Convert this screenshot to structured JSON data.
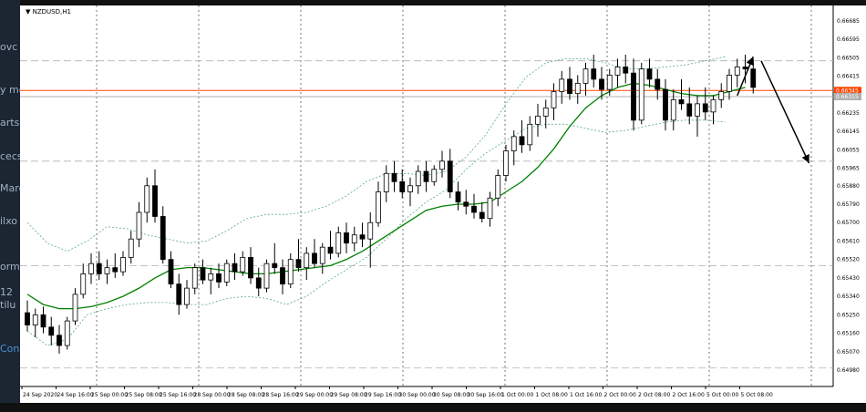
{
  "window": {
    "symbol": "NZDUSD,H1",
    "menu_arrow": "chevron-down-icon"
  },
  "side_panel": {
    "fragments": [
      "ovc",
      "y me",
      "arts",
      "cecs",
      "Marc",
      "ilxo",
      "orme",
      "12",
      "tilu",
      "Cons"
    ]
  },
  "chart_data": {
    "type": "candlestick",
    "symbol": "NZDUSD",
    "timeframe": "H1",
    "y_range": [
      0.649,
      0.6676
    ],
    "y_ticks": [
      "0.66685",
      "0.66595",
      "0.66505",
      "0.66415",
      "0.66325",
      "0.66235",
      "0.66145",
      "0.66055",
      "0.65965",
      "0.65880",
      "0.65790",
      "0.65700",
      "0.65610",
      "0.65520",
      "0.65430",
      "0.65340",
      "0.65250",
      "0.65160",
      "0.65070",
      "0.64980",
      "0.64890"
    ],
    "x_labels": [
      "24 Sep 2020",
      "24 Sep 16:00",
      "25 Sep 00:00",
      "25 Sep 08:00",
      "25 Sep 16:00",
      "28 Sep 00:00",
      "28 Sep 08:00",
      "28 Sep 16:00",
      "29 Sep 00:00",
      "29 Sep 08:00",
      "29 Sep 16:00",
      "30 Sep 00:00",
      "30 Sep 08:00",
      "30 Sep 16:00",
      "1 Oct 00:00",
      "1 Oct 08:00",
      "1 Oct 16:00",
      "2 Oct 00:00",
      "2 Oct 08:00",
      "2 Oct 16:00",
      "5 Oct 00:00",
      "5 Oct 08:00"
    ],
    "horizontal_lines": [
      {
        "price": 0.66345,
        "color": "#ff4500",
        "label": "0.66345",
        "style": "solid"
      },
      {
        "price": 0.66315,
        "color": "#b0b0b0",
        "label": "0.66315",
        "style": "solid"
      },
      {
        "price": 0.6649,
        "color": "#b0b0b0",
        "style": "dashed"
      },
      {
        "price": 0.66,
        "color": "#b0b0b0",
        "style": "dashed"
      },
      {
        "price": 0.6549,
        "color": "#b0b0b0",
        "style": "dashed"
      },
      {
        "price": 0.6499,
        "color": "#b0b0b0",
        "style": "dashed"
      }
    ],
    "candles": [
      [
        0.6526,
        0.6532,
        0.6517,
        0.652
      ],
      [
        0.652,
        0.6528,
        0.6514,
        0.6525
      ],
      [
        0.6525,
        0.6529,
        0.6516,
        0.6519
      ],
      [
        0.6519,
        0.6524,
        0.651,
        0.6515
      ],
      [
        0.6515,
        0.652,
        0.6506,
        0.651
      ],
      [
        0.651,
        0.6524,
        0.6508,
        0.6522
      ],
      [
        0.6522,
        0.6538,
        0.652,
        0.6535
      ],
      [
        0.6535,
        0.655,
        0.6533,
        0.6545
      ],
      [
        0.6545,
        0.6555,
        0.654,
        0.655
      ],
      [
        0.655,
        0.6556,
        0.6542,
        0.6545
      ],
      [
        0.6545,
        0.6552,
        0.654,
        0.6548
      ],
      [
        0.6548,
        0.6555,
        0.6543,
        0.6546
      ],
      [
        0.6546,
        0.6556,
        0.6544,
        0.6553
      ],
      [
        0.6553,
        0.6566,
        0.655,
        0.6562
      ],
      [
        0.6562,
        0.658,
        0.6558,
        0.6575
      ],
      [
        0.6575,
        0.6592,
        0.657,
        0.6588
      ],
      [
        0.6588,
        0.6596,
        0.657,
        0.6573
      ],
      [
        0.6573,
        0.6578,
        0.655,
        0.6552
      ],
      [
        0.6552,
        0.6556,
        0.6538,
        0.654
      ],
      [
        0.654,
        0.6545,
        0.6525,
        0.653
      ],
      [
        0.653,
        0.6542,
        0.6528,
        0.6538
      ],
      [
        0.6538,
        0.655,
        0.6535,
        0.6548
      ],
      [
        0.6548,
        0.6552,
        0.654,
        0.6542
      ],
      [
        0.6542,
        0.6548,
        0.6535,
        0.6545
      ],
      [
        0.6545,
        0.655,
        0.6538,
        0.6541
      ],
      [
        0.6541,
        0.6552,
        0.6539,
        0.655
      ],
      [
        0.655,
        0.6555,
        0.6542,
        0.6546
      ],
      [
        0.6546,
        0.6556,
        0.6544,
        0.6553
      ],
      [
        0.6553,
        0.6558,
        0.654,
        0.6543
      ],
      [
        0.6543,
        0.6548,
        0.6534,
        0.6538
      ],
      [
        0.6538,
        0.6552,
        0.6536,
        0.655
      ],
      [
        0.655,
        0.656,
        0.6545,
        0.6548
      ],
      [
        0.6548,
        0.6552,
        0.6535,
        0.654
      ],
      [
        0.654,
        0.6555,
        0.6538,
        0.6552
      ],
      [
        0.6552,
        0.6562,
        0.6546,
        0.6548
      ],
      [
        0.6548,
        0.6558,
        0.6542,
        0.6555
      ],
      [
        0.6555,
        0.6562,
        0.6548,
        0.655
      ],
      [
        0.655,
        0.656,
        0.6545,
        0.6558
      ],
      [
        0.6558,
        0.6566,
        0.6552,
        0.6555
      ],
      [
        0.6555,
        0.6568,
        0.6553,
        0.6565
      ],
      [
        0.6565,
        0.657,
        0.6555,
        0.656
      ],
      [
        0.656,
        0.6568,
        0.6556,
        0.6564
      ],
      [
        0.6564,
        0.657,
        0.6558,
        0.6562
      ],
      [
        0.6562,
        0.6575,
        0.6548,
        0.657
      ],
      [
        0.657,
        0.659,
        0.6568,
        0.6585
      ],
      [
        0.6585,
        0.6598,
        0.658,
        0.6594
      ],
      [
        0.6594,
        0.66,
        0.6585,
        0.659
      ],
      [
        0.659,
        0.6596,
        0.6582,
        0.6585
      ],
      [
        0.6585,
        0.6592,
        0.6578,
        0.6588
      ],
      [
        0.6588,
        0.6598,
        0.6584,
        0.6595
      ],
      [
        0.6595,
        0.66,
        0.6585,
        0.659
      ],
      [
        0.659,
        0.6598,
        0.6588,
        0.6596
      ],
      [
        0.6596,
        0.6605,
        0.6592,
        0.66
      ],
      [
        0.66,
        0.6606,
        0.6582,
        0.6585
      ],
      [
        0.6585,
        0.659,
        0.6576,
        0.658
      ],
      [
        0.658,
        0.6586,
        0.6574,
        0.6578
      ],
      [
        0.6578,
        0.6584,
        0.6572,
        0.6575
      ],
      [
        0.6575,
        0.658,
        0.657,
        0.6572
      ],
      [
        0.6572,
        0.6585,
        0.6568,
        0.6582
      ],
      [
        0.6582,
        0.6596,
        0.6578,
        0.6593
      ],
      [
        0.6593,
        0.6608,
        0.659,
        0.6605
      ],
      [
        0.6605,
        0.6615,
        0.6598,
        0.6612
      ],
      [
        0.6612,
        0.662,
        0.6604,
        0.6608
      ],
      [
        0.6608,
        0.6622,
        0.6605,
        0.6618
      ],
      [
        0.6618,
        0.6628,
        0.6612,
        0.6622
      ],
      [
        0.6622,
        0.663,
        0.6616,
        0.6626
      ],
      [
        0.6626,
        0.6638,
        0.662,
        0.6634
      ],
      [
        0.6634,
        0.6644,
        0.6628,
        0.664
      ],
      [
        0.664,
        0.6646,
        0.663,
        0.6633
      ],
      [
        0.6633,
        0.6642,
        0.6628,
        0.6638
      ],
      [
        0.6638,
        0.6648,
        0.6632,
        0.6645
      ],
      [
        0.6645,
        0.6652,
        0.6636,
        0.664
      ],
      [
        0.664,
        0.6646,
        0.663,
        0.6635
      ],
      [
        0.6635,
        0.6645,
        0.6632,
        0.6642
      ],
      [
        0.6642,
        0.665,
        0.6636,
        0.6646
      ],
      [
        0.6646,
        0.6652,
        0.6638,
        0.6643
      ],
      [
        0.6643,
        0.665,
        0.6615,
        0.662
      ],
      [
        0.662,
        0.6648,
        0.6618,
        0.6645
      ],
      [
        0.6645,
        0.665,
        0.6636,
        0.664
      ],
      [
        0.664,
        0.6645,
        0.663,
        0.6635
      ],
      [
        0.6635,
        0.664,
        0.6615,
        0.662
      ],
      [
        0.662,
        0.6635,
        0.6615,
        0.663
      ],
      [
        0.663,
        0.664,
        0.6625,
        0.6628
      ],
      [
        0.6628,
        0.6636,
        0.6618,
        0.6622
      ],
      [
        0.6622,
        0.6632,
        0.6612,
        0.6628
      ],
      [
        0.6628,
        0.6636,
        0.662,
        0.6624
      ],
      [
        0.6624,
        0.6632,
        0.6618,
        0.663
      ],
      [
        0.663,
        0.6638,
        0.6626,
        0.6634
      ],
      [
        0.6634,
        0.6645,
        0.663,
        0.6642
      ],
      [
        0.6642,
        0.665,
        0.6636,
        0.6646
      ],
      [
        0.6646,
        0.6652,
        0.6638,
        0.6645
      ],
      [
        0.6645,
        0.665,
        0.6633,
        0.6636
      ]
    ],
    "moving_average": [
      0.6535,
      0.653,
      0.6528,
      0.6528,
      0.6529,
      0.6531,
      0.6534,
      0.6538,
      0.6543,
      0.6547,
      0.6548,
      0.6548,
      0.6547,
      0.6546,
      0.6545,
      0.6545,
      0.6546,
      0.6547,
      0.6548,
      0.6549,
      0.6552,
      0.6556,
      0.6561,
      0.6566,
      0.6571,
      0.6576,
      0.6578,
      0.6579,
      0.6579,
      0.658,
      0.6585,
      0.659,
      0.6597,
      0.6606,
      0.6617,
      0.6626,
      0.6632,
      0.6636,
      0.6638,
      0.6637,
      0.6635,
      0.6633,
      0.6632,
      0.6632,
      0.6634,
      0.6636
    ],
    "bollinger_upper": [
      0.657,
      0.656,
      0.6556,
      0.6561,
      0.6568,
      0.6567,
      0.6564,
      0.6562,
      0.656,
      0.6561,
      0.6566,
      0.6572,
      0.6574,
      0.6574,
      0.6575,
      0.6578,
      0.6583,
      0.659,
      0.6594,
      0.6594,
      0.6593,
      0.6595,
      0.6602,
      0.6613,
      0.6628,
      0.6641,
      0.6648,
      0.665,
      0.665,
      0.6648,
      0.6645,
      0.6645,
      0.6646,
      0.6647,
      0.6649,
      0.6651
    ],
    "bollinger_lower": [
      0.6517,
      0.651,
      0.6513,
      0.6525,
      0.6528,
      0.653,
      0.6531,
      0.6531,
      0.653,
      0.653,
      0.6533,
      0.6534,
      0.6533,
      0.653,
      0.6534,
      0.6541,
      0.6547,
      0.6553,
      0.6562,
      0.6572,
      0.658,
      0.6586,
      0.6596,
      0.6604,
      0.661,
      0.6616,
      0.6618,
      0.6618,
      0.6616,
      0.6614,
      0.6615,
      0.6617,
      0.6619,
      0.662,
      0.662,
      0.6619
    ],
    "forecast_arrows": [
      {
        "from_index": 89,
        "from_price": 0.6632,
        "to_index": 91,
        "to_price": 0.6651
      },
      {
        "from_index": 92,
        "from_price": 0.6649,
        "to_index": 98,
        "to_price": 0.6599
      }
    ],
    "colors": {
      "bull": "#ffffff",
      "bear": "#000000",
      "ma": "#008000",
      "bands": "#55aa88",
      "grid": "#555555"
    }
  }
}
